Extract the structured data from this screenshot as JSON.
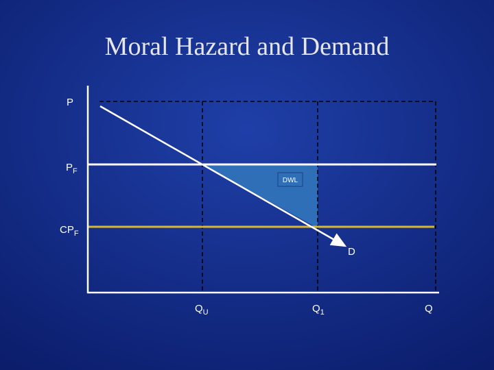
{
  "title": "Moral Hazard and Demand",
  "labels": {
    "p": {
      "text": "P"
    },
    "pf": {
      "text": "P",
      "sub": "F"
    },
    "cpf": {
      "text": "CP",
      "sub": "F"
    },
    "d": {
      "text": "D"
    },
    "dwl": {
      "text": "DWL"
    },
    "qu": {
      "text": "Q",
      "sub": "U"
    },
    "q1": {
      "text": "Q",
      "sub": "1"
    },
    "q": {
      "text": "Q"
    }
  }
}
